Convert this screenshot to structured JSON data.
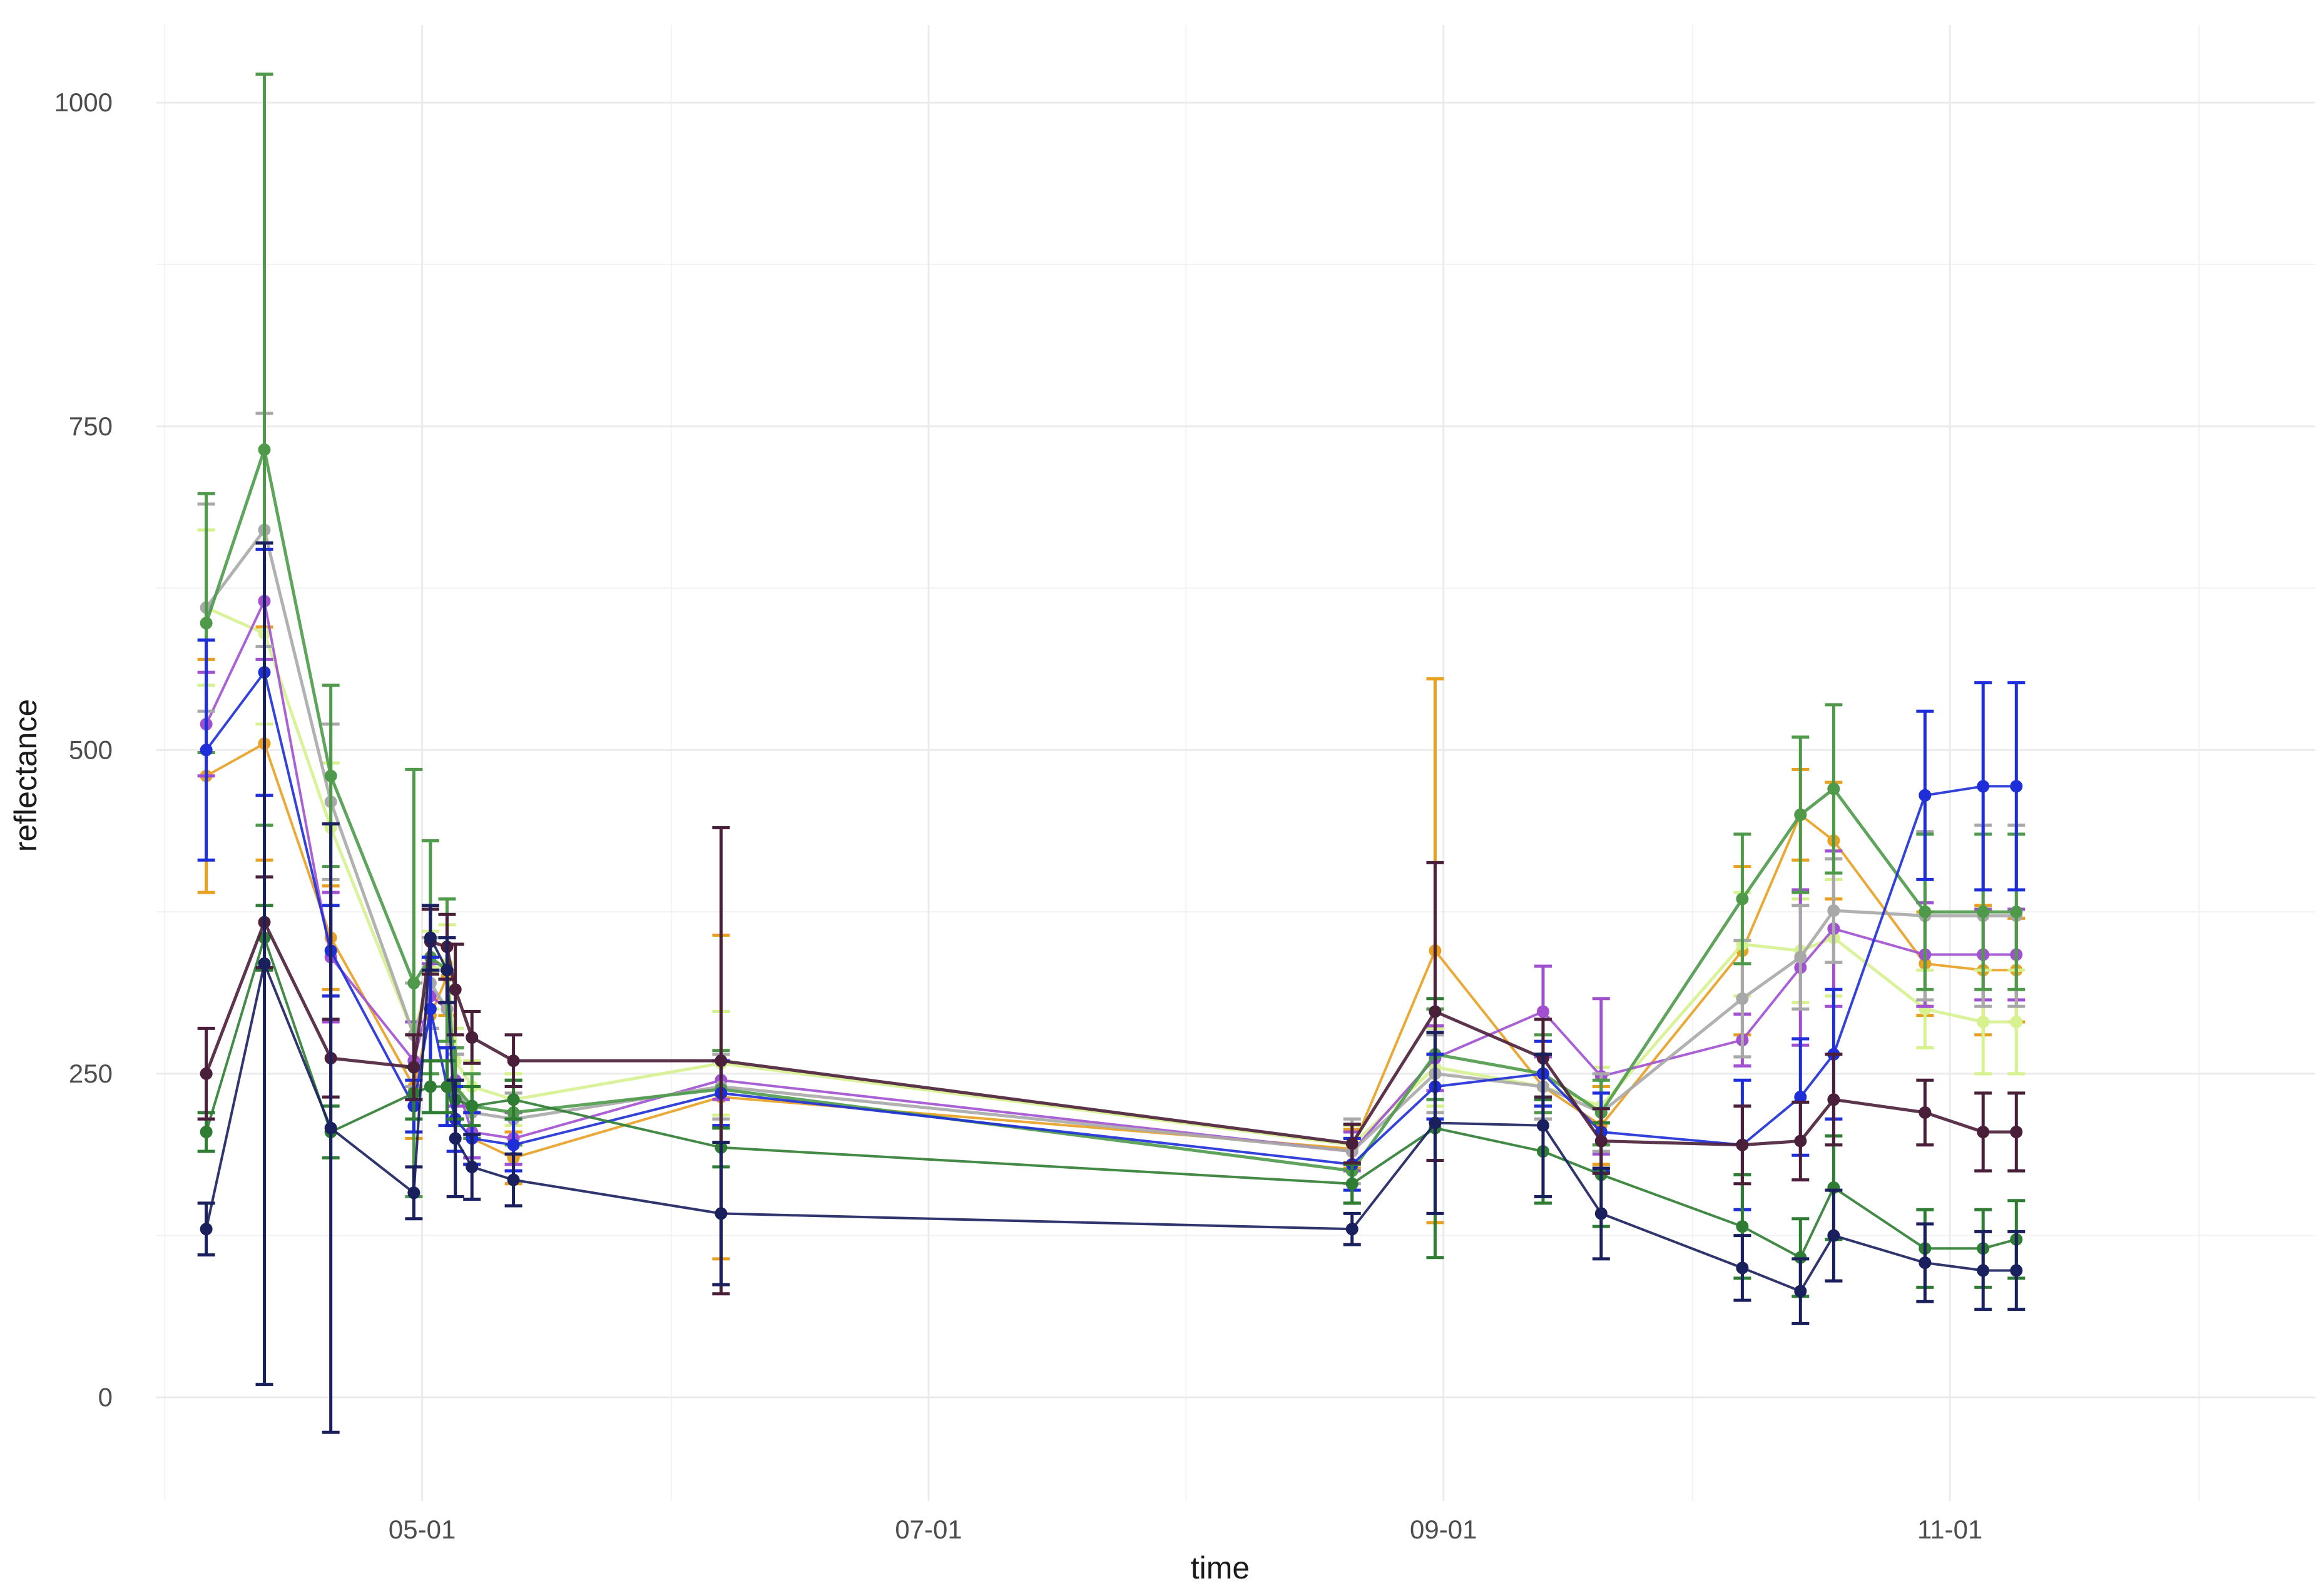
{
  "chart_data": {
    "type": "line",
    "title": "",
    "xlabel": "time",
    "ylabel": "reflectance",
    "ylim": [
      -80,
      1060
    ],
    "xlim": [
      -32,
      228
    ],
    "grid": true,
    "legend": "none",
    "x_ticks": [
      {
        "value": 0,
        "label": "05-01"
      },
      {
        "value": 61,
        "label": "07-01"
      },
      {
        "value": 123,
        "label": "09-01"
      },
      {
        "value": 184,
        "label": "11-01"
      }
    ],
    "x_minor_ticks": [
      -31,
      30,
      92,
      153,
      214
    ],
    "y_ticks": [
      0,
      250,
      500,
      750,
      1000
    ],
    "y_minor_ticks": [
      125,
      375,
      625,
      875
    ],
    "x": [
      -26,
      -19,
      -11,
      -1,
      1,
      3,
      4,
      6,
      11,
      36,
      112,
      122,
      135,
      142,
      159,
      166,
      170,
      181,
      188,
      192
    ],
    "series": [
      {
        "name": "orange",
        "color": "#E8A020",
        "stroke_width": 4,
        "values": [
          480,
          505,
          355,
          240,
          295,
          325,
          215,
          200,
          185,
          232,
          192,
          345,
          240,
          210,
          345,
          450,
          430,
          335,
          330,
          330
        ],
        "err": [
          90,
          90,
          40,
          40,
          35,
          30,
          25,
          20,
          20,
          125,
          15,
          210,
          25,
          30,
          65,
          35,
          45,
          40,
          50,
          40
        ]
      },
      {
        "name": "lightgreen",
        "color": "#D6F28F",
        "stroke_width": 5,
        "values": [
          610,
          590,
          440,
          280,
          330,
          335,
          260,
          240,
          230,
          258,
          195,
          255,
          240,
          225,
          350,
          345,
          355,
          300,
          290,
          290
        ],
        "err": [
          60,
          70,
          50,
          40,
          30,
          30,
          25,
          20,
          20,
          40,
          15,
          30,
          25,
          30,
          40,
          40,
          45,
          30,
          40,
          40
        ]
      },
      {
        "name": "purple",
        "color": "#A050D0",
        "stroke_width": 4,
        "values": [
          520,
          615,
          340,
          260,
          310,
          300,
          245,
          205,
          200,
          245,
          190,
          262,
          298,
          248,
          276,
          332,
          362,
          342,
          342,
          342
        ],
        "err": [
          40,
          45,
          50,
          30,
          25,
          30,
          20,
          20,
          20,
          15,
          15,
          25,
          35,
          60,
          20,
          60,
          60,
          40,
          35,
          35
        ]
      },
      {
        "name": "gray",
        "color": "#A8A8A8",
        "stroke_width": 5,
        "values": [
          610,
          670,
          460,
          280,
          320,
          300,
          240,
          220,
          215,
          240,
          190,
          250,
          240,
          220,
          308,
          340,
          376,
          372,
          372,
          372
        ],
        "err": [
          80,
          90,
          60,
          40,
          35,
          30,
          25,
          20,
          20,
          25,
          25,
          30,
          25,
          30,
          45,
          40,
          40,
          65,
          70,
          70
        ]
      },
      {
        "name": "green",
        "color": "#4E9A4A",
        "stroke_width": 5,
        "values": [
          598,
          732,
          480,
          320,
          340,
          330,
          240,
          225,
          220,
          238,
          175,
          265,
          250,
          220,
          385,
          450,
          470,
          375,
          375,
          375
        ],
        "err": [
          100,
          290,
          70,
          165,
          90,
          55,
          30,
          25,
          25,
          30,
          25,
          35,
          30,
          25,
          50,
          60,
          65,
          60,
          60,
          60
        ]
      },
      {
        "name": "blue",
        "color": "#1E2ED8",
        "stroke_width": 4,
        "values": [
          500,
          560,
          345,
          225,
          300,
          240,
          215,
          200,
          195,
          235,
          180,
          240,
          250,
          205,
          195,
          232,
          265,
          465,
          472,
          472
        ],
        "err": [
          85,
          95,
          35,
          20,
          40,
          30,
          25,
          20,
          20,
          25,
          20,
          25,
          25,
          30,
          50,
          45,
          50,
          65,
          80,
          80
        ]
      },
      {
        "name": "darkgreen",
        "color": "#2E7D32",
        "stroke_width": 4,
        "values": [
          205,
          355,
          205,
          235,
          240,
          240,
          230,
          225,
          230,
          193,
          165,
          208,
          190,
          172,
          132,
          108,
          162,
          115,
          115,
          122
        ],
        "err": [
          15,
          25,
          20,
          20,
          20,
          20,
          15,
          15,
          15,
          15,
          15,
          100,
          40,
          40,
          40,
          30,
          40,
          30,
          30,
          30
        ]
      },
      {
        "name": "maroon",
        "color": "#4A1F3A",
        "stroke_width": 5,
        "values": [
          250,
          367,
          262,
          255,
          352,
          348,
          315,
          278,
          260,
          260,
          196,
          298,
          262,
          198,
          195,
          198,
          230,
          220,
          205,
          205
        ],
        "err": [
          35,
          35,
          30,
          25,
          25,
          25,
          35,
          20,
          20,
          180,
          15,
          115,
          30,
          25,
          30,
          30,
          35,
          25,
          30,
          30
        ]
      },
      {
        "name": "navy",
        "color": "#1A1F5E",
        "stroke_width": 4,
        "values": [
          130,
          335,
          208,
          158,
          355,
          330,
          200,
          178,
          168,
          142,
          130,
          212,
          210,
          142,
          100,
          82,
          125,
          104,
          98,
          98
        ],
        "err": [
          20,
          325,
          235,
          20,
          25,
          25,
          45,
          25,
          20,
          55,
          12,
          70,
          55,
          35,
          25,
          25,
          35,
          30,
          30,
          30
        ]
      }
    ]
  }
}
